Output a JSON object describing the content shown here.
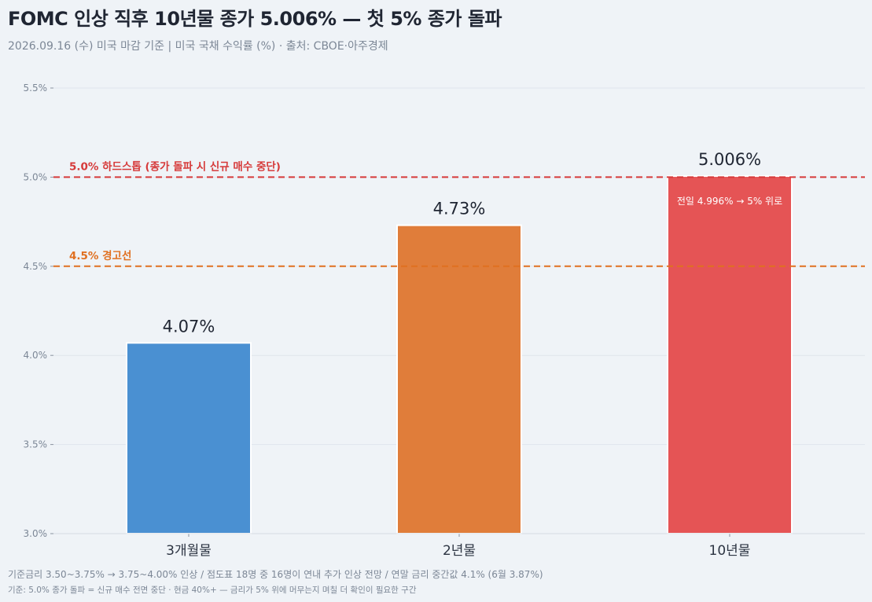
{
  "title": "FOMC 인상 직후 10년물 종가 5.006% — 첫 5% 종가 돌파",
  "subtitle": "2026.09.16 (수) 미국 마감 기준  |  미국 국채 수익률 (%)  ·  출처: CBOE·아주경제",
  "footnotes": [
    "기준금리 3.50~3.75% → 3.75~4.00% 인상 / 점도표 18명 중 16명이 연내 추가 인상 전망 / 연말 금리 중간값 4.1% (6월 3.87%)",
    "기준: 5.0% 종가 돌파 = 신규 매수 전면 중단 · 현금 40%+ — 금리가 5% 위에 머무는지 며칠 더 확인이 필요한 구간"
  ],
  "chart_data": {
    "type": "bar",
    "categories": [
      "3개월물",
      "2년물",
      "10년물"
    ],
    "values": [
      4.07,
      4.73,
      5.006
    ],
    "value_labels": [
      "4.07%",
      "4.73%",
      "5.006%"
    ],
    "bar_colors": [
      "#4a90d2",
      "#e07d3a",
      "#e55455"
    ],
    "ylim": [
      3.0,
      5.5
    ],
    "yticks": [
      3.0,
      3.5,
      4.0,
      4.5,
      5.0,
      5.5
    ],
    "ytick_labels": [
      "3.0%",
      "3.5%",
      "4.0%",
      "4.5%",
      "5.0%",
      "5.5%"
    ],
    "grid": true,
    "reference_lines": [
      {
        "value": 5.0,
        "label": "5.0% 하드스톱 (종가 돌파 시 신규 매수 중단)",
        "color": "#d63a3a"
      },
      {
        "value": 4.5,
        "label": "4.5% 경고선",
        "color": "#e07020"
      }
    ],
    "annotations": [
      {
        "category": "10년물",
        "text": "전일 4.996% → 5% 위로"
      }
    ]
  }
}
